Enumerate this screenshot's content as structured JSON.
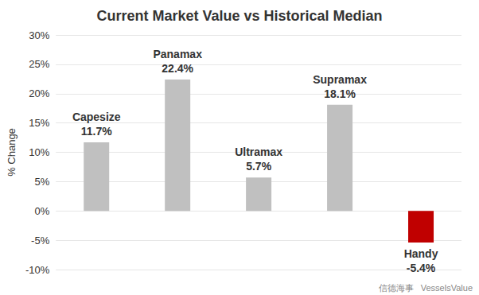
{
  "chart_data": {
    "type": "bar",
    "title": "Current Market Value vs Historical Median",
    "y_label": "% Change",
    "categories": [
      "Capesize",
      "Panamax",
      "Ultramax",
      "Supramax",
      "Handy"
    ],
    "values": [
      11.7,
      22.4,
      5.7,
      18.1,
      -5.4
    ],
    "value_labels": [
      "11.7%",
      "22.4%",
      "5.7%",
      "18.1%",
      "-5.4%"
    ],
    "colors": [
      "#c0c0c0",
      "#c0c0c0",
      "#c0c0c0",
      "#c0c0c0",
      "#c00000"
    ],
    "ylim": [
      -10,
      30
    ],
    "yticks": [
      {
        "value": -10,
        "label": "-10%"
      },
      {
        "value": -5,
        "label": "-5%"
      },
      {
        "value": 0,
        "label": "0%"
      },
      {
        "value": 5,
        "label": "5%"
      },
      {
        "value": 10,
        "label": "10%"
      },
      {
        "value": 15,
        "label": "15%"
      },
      {
        "value": 20,
        "label": "20%"
      },
      {
        "value": 25,
        "label": "25%"
      },
      {
        "value": 30,
        "label": "30%"
      }
    ],
    "grid": true,
    "data_labels": true,
    "tick_labels": "y",
    "annotations": [
      "信德海事",
      "VesselsValue"
    ]
  }
}
